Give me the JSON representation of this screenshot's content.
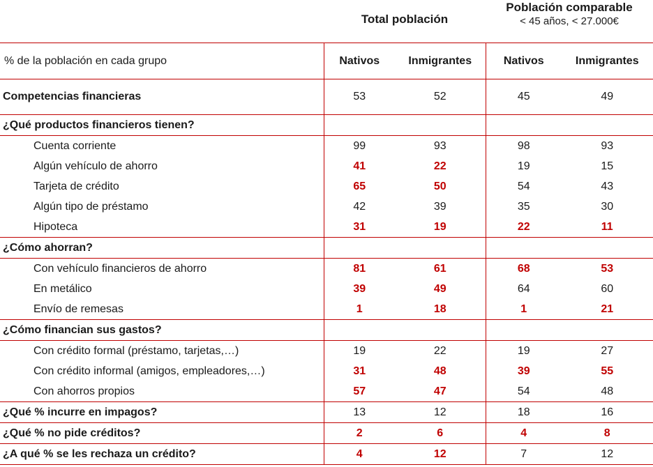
{
  "header": {
    "group1_title": "Total población",
    "group2_title": "Población comparable",
    "group2_subtitle": "< 45 años, < 27.000€",
    "row_label": "% de la población en cada grupo",
    "columns": [
      "Nativos",
      "Inmigrantes",
      "Nativos",
      "Inmigrantes"
    ]
  },
  "colors": {
    "accent": "#c00000"
  },
  "rows": [
    {
      "type": "comp",
      "label": "Competencias financieras",
      "values": [
        "53",
        "52",
        "45",
        "49"
      ],
      "hl": [
        false,
        false,
        false,
        false
      ]
    },
    {
      "type": "sec",
      "label": "¿Qué productos financieros tienen?"
    },
    {
      "type": "item",
      "label": "Cuenta corriente",
      "values": [
        "99",
        "93",
        "98",
        "93"
      ],
      "hl": [
        false,
        false,
        false,
        false
      ]
    },
    {
      "type": "item",
      "label": "Algún vehículo de ahorro",
      "values": [
        "41",
        "22",
        "19",
        "15"
      ],
      "hl": [
        true,
        true,
        false,
        false
      ]
    },
    {
      "type": "item",
      "label": "Tarjeta de crédito",
      "values": [
        "65",
        "50",
        "54",
        "43"
      ],
      "hl": [
        true,
        true,
        false,
        false
      ]
    },
    {
      "type": "item",
      "label": "Algún tipo de préstamo",
      "values": [
        "42",
        "39",
        "35",
        "30"
      ],
      "hl": [
        false,
        false,
        false,
        false
      ]
    },
    {
      "type": "item last",
      "label": "Hipoteca",
      "values": [
        "31",
        "19",
        "22",
        "11"
      ],
      "hl": [
        true,
        true,
        true,
        true
      ]
    },
    {
      "type": "sec",
      "label": "¿Cómo ahorran?"
    },
    {
      "type": "item",
      "label": "Con vehículo financieros de ahorro",
      "values": [
        "81",
        "61",
        "68",
        "53"
      ],
      "hl": [
        true,
        true,
        true,
        true
      ]
    },
    {
      "type": "item",
      "label": "En metálico",
      "values": [
        "39",
        "49",
        "64",
        "60"
      ],
      "hl": [
        true,
        true,
        false,
        false
      ]
    },
    {
      "type": "item last",
      "label": "Envío de remesas",
      "values": [
        "1",
        "18",
        "1",
        "21"
      ],
      "hl": [
        true,
        true,
        true,
        true
      ]
    },
    {
      "type": "sec",
      "label": "¿Cómo financian sus gastos?"
    },
    {
      "type": "item",
      "label": "Con crédito formal (préstamo, tarjetas,…)",
      "values": [
        "19",
        "22",
        "19",
        "27"
      ],
      "hl": [
        false,
        false,
        false,
        false
      ]
    },
    {
      "type": "item",
      "label": "Con crédito informal (amigos, empleadores,…)",
      "values": [
        "31",
        "48",
        "39",
        "55"
      ],
      "hl": [
        true,
        true,
        true,
        true
      ]
    },
    {
      "type": "item last",
      "label": "Con ahorros propios",
      "values": [
        "57",
        "47",
        "54",
        "48"
      ],
      "hl": [
        true,
        true,
        false,
        false
      ]
    },
    {
      "type": "q",
      "label": "¿Qué % incurre en impagos?",
      "values": [
        "13",
        "12",
        "18",
        "16"
      ],
      "hl": [
        false,
        false,
        false,
        false
      ]
    },
    {
      "type": "q",
      "label": "¿Qué % no pide créditos?",
      "values": [
        "2",
        "6",
        "4",
        "8"
      ],
      "hl": [
        true,
        true,
        true,
        true
      ]
    },
    {
      "type": "q",
      "label": "¿A qué % se les rechaza un crédito?",
      "values": [
        "4",
        "12",
        "7",
        "12"
      ],
      "hl": [
        true,
        true,
        false,
        false
      ]
    }
  ]
}
